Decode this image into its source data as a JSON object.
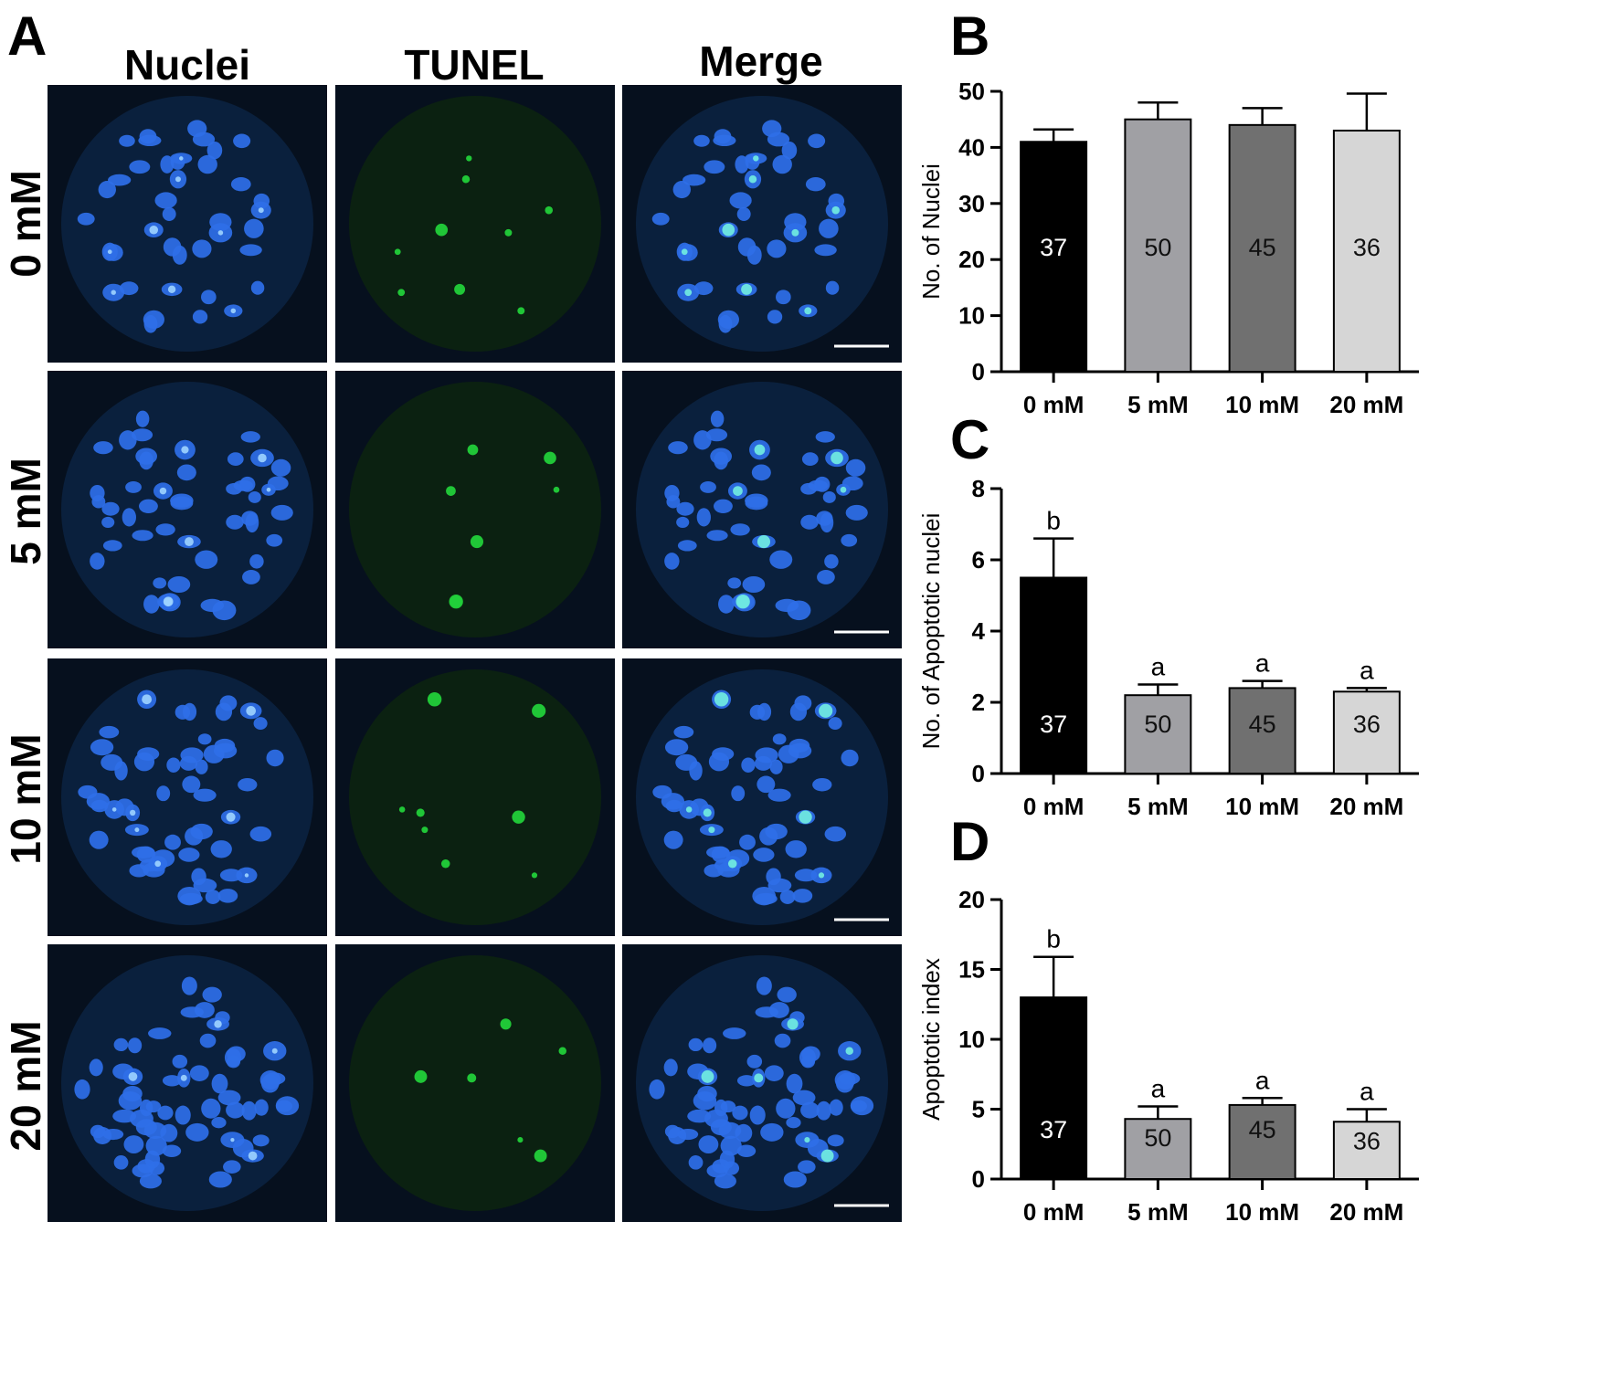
{
  "panel_labels": {
    "a": "A",
    "b": "B",
    "c": "C",
    "d": "D"
  },
  "microscopy": {
    "columns": [
      "Nuclei",
      "TUNEL",
      "Merge"
    ],
    "rows": [
      "0 mM",
      "5 mM",
      "10 mM",
      "20 mM"
    ]
  },
  "colors": {
    "nuclei": "#2f6fe8",
    "tunel": "#22d03a",
    "background": "#06101e",
    "bar_0mM": "#000000",
    "bar_5mM": "#a0a0a4",
    "bar_10mM": "#707070",
    "bar_20mM": "#d6d6d6"
  },
  "chart_data": [
    {
      "type": "bar",
      "panel": "B",
      "categories": [
        "0 mM",
        "5 mM",
        "10 mM",
        "20 mM"
      ],
      "values": [
        41,
        45,
        44,
        43
      ],
      "errors": [
        2.2,
        3,
        3,
        6.6
      ],
      "bar_labels": [
        "37",
        "50",
        "45",
        "36"
      ],
      "letters": [
        "",
        "",
        "",
        ""
      ],
      "ylabel": "No. of Nuclei",
      "ylim": [
        0,
        50
      ],
      "yticks": [
        "0",
        "10",
        "20",
        "30",
        "40",
        "50"
      ]
    },
    {
      "type": "bar",
      "panel": "C",
      "categories": [
        "0 mM",
        "5 mM",
        "10 mM",
        "20 mM"
      ],
      "values": [
        5.5,
        2.2,
        2.4,
        2.3
      ],
      "errors": [
        1.1,
        0.3,
        0.2,
        0.1
      ],
      "bar_labels": [
        "37",
        "50",
        "45",
        "36"
      ],
      "letters": [
        "b",
        "a",
        "a",
        "a"
      ],
      "ylabel": "No. of Apoptotic nuclei",
      "ylim": [
        0,
        8
      ],
      "yticks": [
        "0",
        "2",
        "4",
        "6",
        "8"
      ]
    },
    {
      "type": "bar",
      "panel": "D",
      "categories": [
        "0 mM",
        "5 mM",
        "10 mM",
        "20 mM"
      ],
      "values": [
        13,
        4.3,
        5.3,
        4.1
      ],
      "errors": [
        2.9,
        0.9,
        0.5,
        0.9
      ],
      "bar_labels": [
        "37",
        "50",
        "45",
        "36"
      ],
      "letters": [
        "b",
        "a",
        "a",
        "a"
      ],
      "ylabel": "Apoptotic index",
      "ylim": [
        0,
        20
      ],
      "yticks": [
        "0",
        "5",
        "10",
        "15",
        "20"
      ]
    }
  ]
}
